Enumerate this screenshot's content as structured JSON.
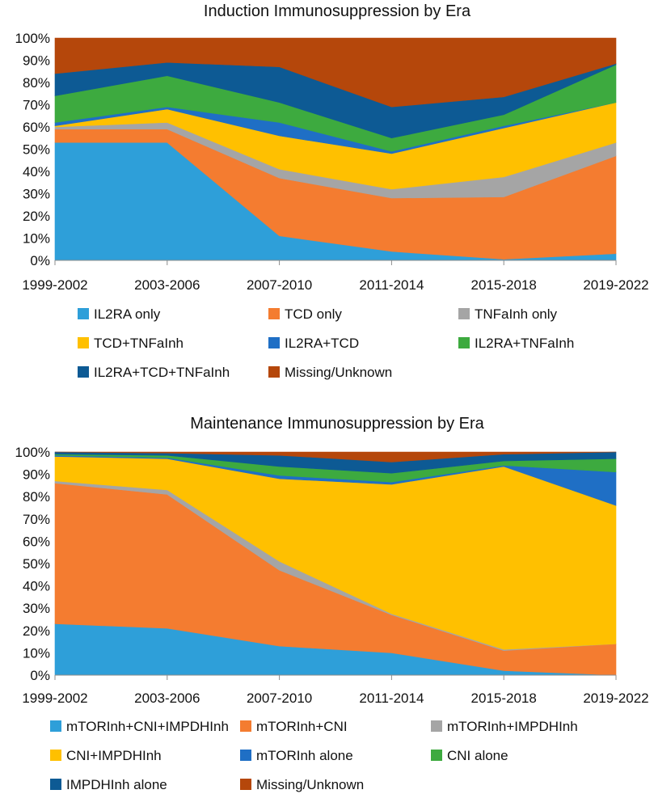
{
  "chart_data": [
    {
      "type": "area",
      "stacked": true,
      "percent": true,
      "title": "Induction Immunosuppression by Era",
      "xlabel": "",
      "ylabel": "",
      "ylim": [
        0,
        100
      ],
      "yticks": [
        "0%",
        "10%",
        "20%",
        "30%",
        "40%",
        "50%",
        "60%",
        "70%",
        "80%",
        "90%",
        "100%"
      ],
      "categories": [
        "1999-2002",
        "2003-2006",
        "2007-2010",
        "2011-2014",
        "2015-2018",
        "2019-2022"
      ],
      "series": [
        {
          "name": "IL2RA only",
          "color": "#2e9fd9",
          "values": [
            53,
            53,
            11,
            4,
            0.5,
            3
          ]
        },
        {
          "name": "TCD only",
          "color": "#f47c30",
          "values": [
            6,
            6,
            26,
            24,
            28,
            44
          ]
        },
        {
          "name": "TNFaInh only",
          "color": "#a5a5a5",
          "values": [
            1,
            3,
            4,
            4,
            9,
            6
          ]
        },
        {
          "name": "TCD+TNFaInh",
          "color": "#ffc000",
          "values": [
            0.5,
            6,
            15,
            16,
            22,
            18
          ]
        },
        {
          "name": "IL2RA+TCD",
          "color": "#1f6fc5",
          "values": [
            1.5,
            1,
            6,
            1,
            1,
            0
          ]
        },
        {
          "name": "IL2RA+TNFaInh",
          "color": "#3daa3f",
          "values": [
            12,
            14,
            9,
            6,
            5,
            17
          ]
        },
        {
          "name": "IL2RA+TCD+TNFaInh",
          "color": "#0d5a94",
          "values": [
            10,
            6,
            16,
            14,
            8,
            0.5
          ]
        },
        {
          "name": "Missing/Unknown",
          "color": "#b5470b",
          "values": [
            16,
            11,
            13,
            31,
            26.5,
            11.5
          ]
        }
      ]
    },
    {
      "type": "area",
      "stacked": true,
      "percent": true,
      "title": "Maintenance Immunosuppression by Era",
      "xlabel": "",
      "ylabel": "",
      "ylim": [
        0,
        100
      ],
      "yticks": [
        "0%",
        "10%",
        "20%",
        "30%",
        "40%",
        "50%",
        "60%",
        "70%",
        "80%",
        "90%",
        "100%"
      ],
      "categories": [
        "1999-2002",
        "2003-2006",
        "2007-2010",
        "2011-2014",
        "2015-2018",
        "2019-2022"
      ],
      "series": [
        {
          "name": "mTORInh+CNI+IMPDHInh",
          "color": "#2e9fd9",
          "values": [
            23,
            21,
            13,
            10,
            2,
            0
          ]
        },
        {
          "name": "mTORInh+CNI",
          "color": "#f47c30",
          "values": [
            63,
            60,
            34,
            17,
            9,
            14
          ]
        },
        {
          "name": "mTORInh+IMPDHInh",
          "color": "#a5a5a5",
          "values": [
            1,
            2,
            4,
            0.5,
            0.5,
            0
          ]
        },
        {
          "name": "CNI+IMPDHInh",
          "color": "#ffc000",
          "values": [
            11,
            14,
            37,
            58,
            82,
            62
          ]
        },
        {
          "name": "mTORInh alone",
          "color": "#1f6fc5",
          "values": [
            0.5,
            0.5,
            1.5,
            1,
            0.5,
            15
          ]
        },
        {
          "name": "CNI alone",
          "color": "#3daa3f",
          "values": [
            0.5,
            1,
            4,
            4,
            2,
            6
          ]
        },
        {
          "name": "IMPDHInh alone",
          "color": "#0d5a94",
          "values": [
            1,
            1,
            5,
            5,
            3,
            3
          ]
        },
        {
          "name": "Missing/Unknown",
          "color": "#b5470b",
          "values": [
            0,
            0.5,
            1.5,
            4.5,
            1,
            0
          ]
        }
      ]
    }
  ]
}
